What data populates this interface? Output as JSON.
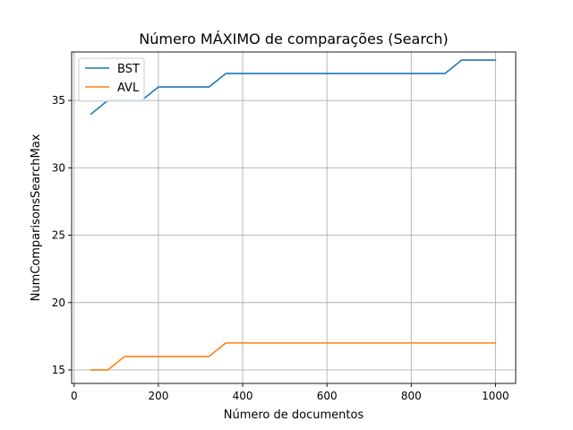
{
  "chart_data": {
    "type": "line",
    "title": "Número MÁXIMO de comparações (Search)",
    "xlabel": "Número de documentos",
    "ylabel": "NumComparisonsSearchMax",
    "xlim": [
      -6,
      1048
    ],
    "ylim": [
      14,
      38.6
    ],
    "xticks": [
      0,
      200,
      400,
      600,
      800,
      1000
    ],
    "yticks": [
      15,
      20,
      25,
      30,
      35
    ],
    "grid": true,
    "legend_position": "top-left",
    "series": [
      {
        "name": "BST",
        "color": "#1f77b4",
        "x": [
          40,
          80,
          120,
          160,
          200,
          240,
          280,
          320,
          360,
          400,
          440,
          480,
          520,
          560,
          600,
          640,
          680,
          720,
          760,
          800,
          840,
          880,
          920,
          960,
          1000
        ],
        "y": [
          34,
          35,
          35,
          35,
          36,
          36,
          36,
          36,
          37,
          37,
          37,
          37,
          37,
          37,
          37,
          37,
          37,
          37,
          37,
          37,
          37,
          37,
          38,
          38,
          38
        ]
      },
      {
        "name": "AVL",
        "color": "#ff7f0e",
        "x": [
          40,
          80,
          120,
          160,
          200,
          240,
          280,
          320,
          360,
          400,
          440,
          480,
          520,
          560,
          600,
          640,
          680,
          720,
          760,
          800,
          840,
          880,
          920,
          960,
          1000
        ],
        "y": [
          15,
          15,
          16,
          16,
          16,
          16,
          16,
          16,
          17,
          17,
          17,
          17,
          17,
          17,
          17,
          17,
          17,
          17,
          17,
          17,
          17,
          17,
          17,
          17,
          17
        ]
      }
    ]
  }
}
